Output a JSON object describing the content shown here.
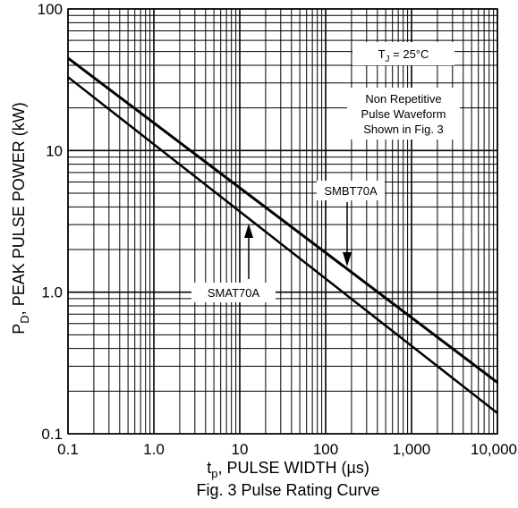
{
  "chart_data": {
    "type": "line",
    "x_scale": "log",
    "y_scale": "log",
    "xlim": [
      0.1,
      10000
    ],
    "ylim": [
      0.1,
      100
    ],
    "grid": true,
    "x_ticks": [
      "0.1",
      "1.0",
      "10",
      "100",
      "1,000",
      "10,000"
    ],
    "y_ticks": [
      "0.1",
      "1.0",
      "10",
      "100"
    ],
    "xlabel": {
      "main": "t",
      "sub": "p",
      "rest": ", PULSE WIDTH (µs)"
    },
    "ylabel": {
      "main": "P",
      "sub": "D",
      "rest": ", PEAK PULSE POWER (kW)"
    },
    "caption": "Fig. 3 Pulse Rating Curve",
    "series": [
      {
        "name": "SMBT70A",
        "x": [
          0.1,
          10000
        ],
        "y": [
          45,
          0.23
        ]
      },
      {
        "name": "SMAT70A",
        "x": [
          0.1,
          10000
        ],
        "y": [
          33,
          0.14
        ]
      }
    ],
    "annotations": {
      "temperature": {
        "main": "T",
        "sub": "J",
        "rest": " = 25°C"
      },
      "waveform_note": [
        "Non Repetitive",
        "Pulse Waveform",
        "Shown in Fig. 3"
      ]
    }
  }
}
